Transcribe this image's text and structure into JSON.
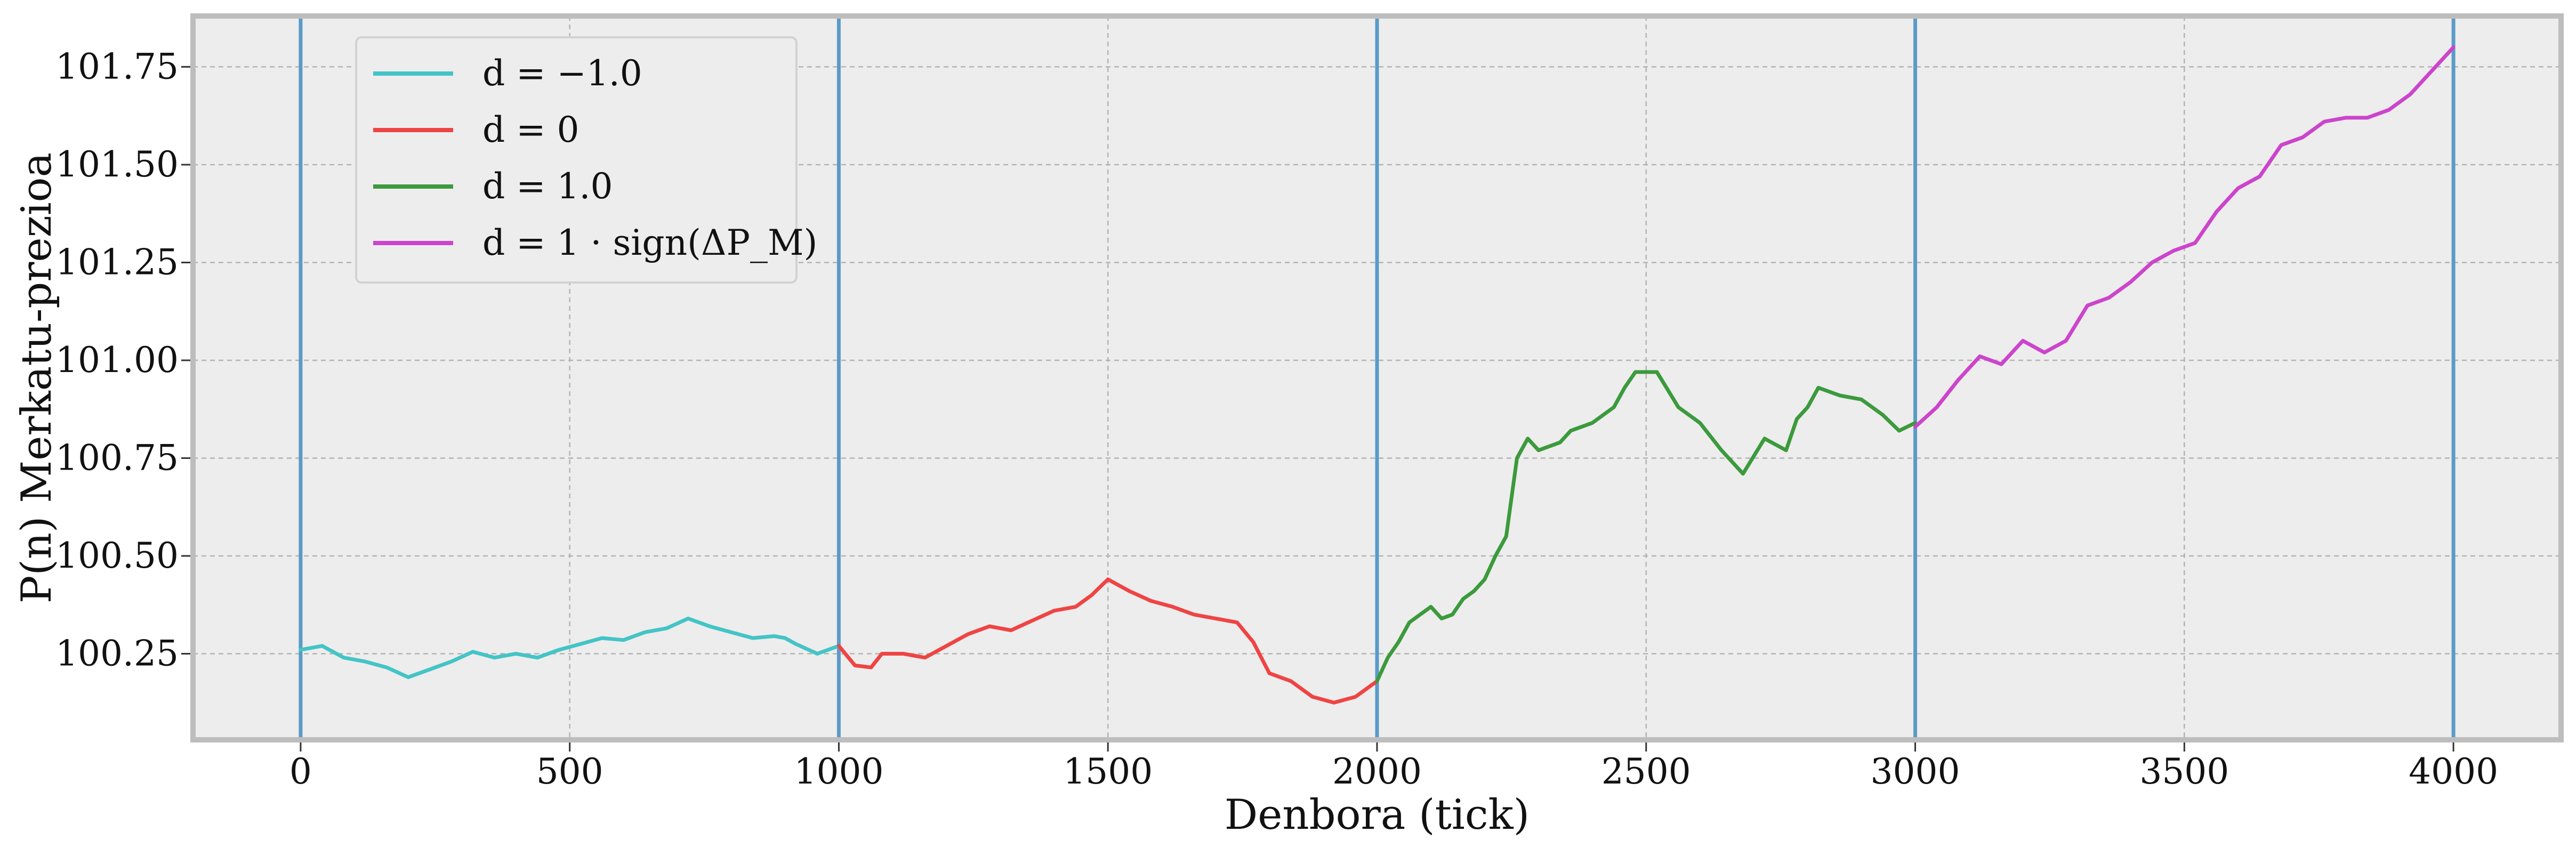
{
  "chart_data": {
    "type": "line",
    "xlabel": "Denbora (tick)",
    "ylabel": "P(n) Merkatu-prezioa",
    "xlim": [
      -200,
      4200
    ],
    "ylim": [
      100.03,
      101.88
    ],
    "x_ticks": [
      0,
      500,
      1000,
      1500,
      2000,
      2500,
      3000,
      3500,
      4000
    ],
    "x_tick_labels": [
      "0",
      "500",
      "1000",
      "1500",
      "2000",
      "2500",
      "3000",
      "3500",
      "4000"
    ],
    "y_ticks": [
      100.25,
      100.5,
      100.75,
      101.0,
      101.25,
      101.5,
      101.75
    ],
    "y_tick_labels": [
      "100.25",
      "100.50",
      "100.75",
      "101.00",
      "101.25",
      "101.50",
      "101.75"
    ],
    "grid": true,
    "legend_position": "top-left",
    "vertical_lines": [
      0,
      1000,
      2000,
      3000,
      4000
    ],
    "vertical_line_color": "#5a9bc7",
    "series": [
      {
        "name": "d = −1.0",
        "color": "#44c4c6",
        "points": [
          [
            0,
            100.26
          ],
          [
            40,
            100.27
          ],
          [
            80,
            100.24
          ],
          [
            120,
            100.23
          ],
          [
            160,
            100.215
          ],
          [
            200,
            100.19
          ],
          [
            240,
            100.21
          ],
          [
            280,
            100.23
          ],
          [
            320,
            100.255
          ],
          [
            360,
            100.24
          ],
          [
            400,
            100.25
          ],
          [
            440,
            100.24
          ],
          [
            480,
            100.26
          ],
          [
            520,
            100.275
          ],
          [
            560,
            100.29
          ],
          [
            600,
            100.285
          ],
          [
            640,
            100.305
          ],
          [
            680,
            100.315
          ],
          [
            720,
            100.34
          ],
          [
            760,
            100.32
          ],
          [
            800,
            100.305
          ],
          [
            840,
            100.29
          ],
          [
            880,
            100.295
          ],
          [
            900,
            100.29
          ],
          [
            920,
            100.275
          ],
          [
            960,
            100.25
          ],
          [
            1000,
            100.27
          ]
        ]
      },
      {
        "name": "d = 0",
        "color": "#ef4444",
        "points": [
          [
            1000,
            100.27
          ],
          [
            1030,
            100.22
          ],
          [
            1060,
            100.215
          ],
          [
            1080,
            100.25
          ],
          [
            1120,
            100.25
          ],
          [
            1160,
            100.24
          ],
          [
            1200,
            100.27
          ],
          [
            1240,
            100.3
          ],
          [
            1280,
            100.32
          ],
          [
            1320,
            100.31
          ],
          [
            1360,
            100.335
          ],
          [
            1400,
            100.36
          ],
          [
            1440,
            100.37
          ],
          [
            1470,
            100.4
          ],
          [
            1500,
            100.44
          ],
          [
            1540,
            100.41
          ],
          [
            1580,
            100.385
          ],
          [
            1620,
            100.37
          ],
          [
            1660,
            100.35
          ],
          [
            1700,
            100.34
          ],
          [
            1740,
            100.33
          ],
          [
            1770,
            100.28
          ],
          [
            1800,
            100.2
          ],
          [
            1840,
            100.18
          ],
          [
            1880,
            100.14
          ],
          [
            1920,
            100.125
          ],
          [
            1960,
            100.14
          ],
          [
            2000,
            100.18
          ]
        ]
      },
      {
        "name": "d = 1.0",
        "color": "#3c9a3c",
        "points": [
          [
            2000,
            100.18
          ],
          [
            2020,
            100.24
          ],
          [
            2040,
            100.28
          ],
          [
            2060,
            100.33
          ],
          [
            2080,
            100.35
          ],
          [
            2100,
            100.37
          ],
          [
            2120,
            100.34
          ],
          [
            2140,
            100.35
          ],
          [
            2160,
            100.39
          ],
          [
            2180,
            100.41
          ],
          [
            2200,
            100.44
          ],
          [
            2220,
            100.5
          ],
          [
            2240,
            100.55
          ],
          [
            2260,
            100.75
          ],
          [
            2280,
            100.8
          ],
          [
            2300,
            100.77
          ],
          [
            2340,
            100.79
          ],
          [
            2360,
            100.82
          ],
          [
            2400,
            100.84
          ],
          [
            2420,
            100.86
          ],
          [
            2440,
            100.88
          ],
          [
            2460,
            100.93
          ],
          [
            2480,
            100.97
          ],
          [
            2520,
            100.97
          ],
          [
            2560,
            100.88
          ],
          [
            2600,
            100.84
          ],
          [
            2640,
            100.77
          ],
          [
            2680,
            100.71
          ],
          [
            2720,
            100.8
          ],
          [
            2760,
            100.77
          ],
          [
            2780,
            100.85
          ],
          [
            2800,
            100.88
          ],
          [
            2820,
            100.93
          ],
          [
            2860,
            100.91
          ],
          [
            2900,
            100.9
          ],
          [
            2940,
            100.86
          ],
          [
            2970,
            100.82
          ],
          [
            3000,
            100.84
          ]
        ]
      },
      {
        "name": "d = 1 · sign(ΔP_M)",
        "color": "#cc44cc",
        "points": [
          [
            3000,
            100.83
          ],
          [
            3040,
            100.88
          ],
          [
            3080,
            100.95
          ],
          [
            3120,
            101.01
          ],
          [
            3160,
            100.99
          ],
          [
            3200,
            101.05
          ],
          [
            3240,
            101.02
          ],
          [
            3280,
            101.05
          ],
          [
            3320,
            101.14
          ],
          [
            3360,
            101.16
          ],
          [
            3400,
            101.2
          ],
          [
            3440,
            101.25
          ],
          [
            3480,
            101.28
          ],
          [
            3520,
            101.3
          ],
          [
            3560,
            101.38
          ],
          [
            3600,
            101.44
          ],
          [
            3640,
            101.47
          ],
          [
            3680,
            101.55
          ],
          [
            3720,
            101.57
          ],
          [
            3760,
            101.61
          ],
          [
            3800,
            101.62
          ],
          [
            3840,
            101.62
          ],
          [
            3880,
            101.64
          ],
          [
            3920,
            101.68
          ],
          [
            3960,
            101.74
          ],
          [
            4000,
            101.8
          ]
        ]
      }
    ]
  }
}
